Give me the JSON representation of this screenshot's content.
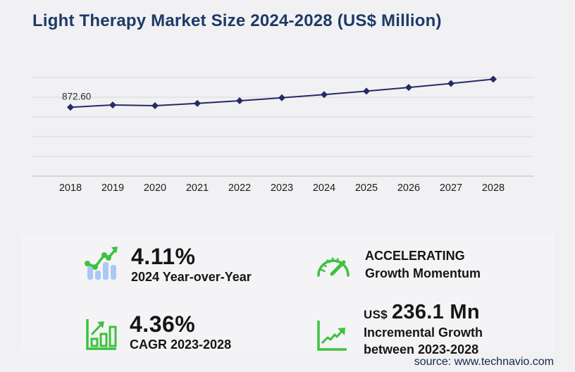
{
  "title": "Light Therapy Market Size 2024-2028 (US$ Million)",
  "source": "source: www.technavio.com",
  "colors": {
    "background": "#f1f1f3",
    "panel": "#f4f4f6",
    "title_navy": "#1e3a68",
    "line_navy": "#262a67",
    "grid": "#d9d9dc",
    "axis": "#c5c5c9",
    "accent_green": "#3ec13e",
    "bar_blue": "#a9c9f4",
    "text_dark": "#161616"
  },
  "chart_data": {
    "type": "line",
    "title": "Light Therapy Market Size 2024-2028 (US$ Million)",
    "categories": [
      "2018",
      "2019",
      "2020",
      "2021",
      "2022",
      "2023",
      "2024",
      "2025",
      "2026",
      "2027",
      "2028"
    ],
    "values": [
      872.6,
      901.9,
      893.4,
      921.5,
      955.0,
      992.8,
      1033.6,
      1077.0,
      1124.0,
      1174.5,
      1228.9
    ],
    "first_point_label": "872.60",
    "xlabel": "",
    "ylabel": "",
    "ylim": [
      0,
      1250
    ],
    "gridline_values": [
      250,
      500,
      750,
      1000,
      1250
    ],
    "grid": "horizontal-only",
    "legend": "none",
    "marker": "diamond",
    "series_name": "Market size (US$ Million)"
  },
  "stats": {
    "yoy": {
      "value": "4.11%",
      "label": "2024 Year-over-Year"
    },
    "momentum": {
      "value": "ACCELERATING",
      "label": "Growth Momentum"
    },
    "cagr": {
      "value": "4.36%",
      "label": "CAGR 2023-2028"
    },
    "incremental": {
      "prefix": "US$",
      "value": "236.1 Mn",
      "label": "Incremental Growth",
      "label2": "between 2023-2028"
    }
  }
}
